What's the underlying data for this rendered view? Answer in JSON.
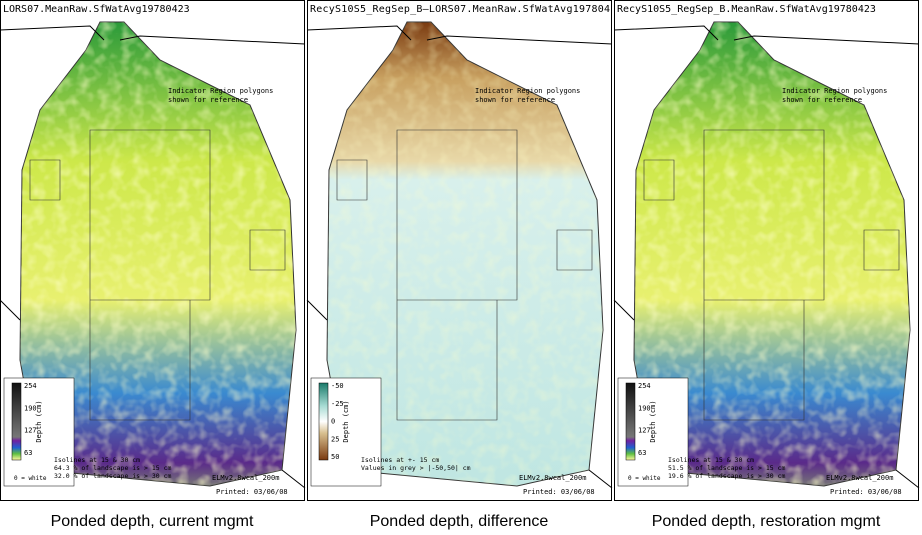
{
  "panels": [
    {
      "title": "LORS07.MeanRaw.SfWatAvg19780423",
      "note": [
        "Indicator Region polygons",
        "shown for reference"
      ],
      "legend": {
        "label": "Depth (cm)",
        "ticks": [
          "254",
          "190",
          "127",
          "63"
        ],
        "zero_note": "0 = white"
      },
      "stats": [
        "Isolines at 15 & 30 cm",
        "64.3 % of landscape is > 15 cm",
        "32.0 % of landscape is > 30 cm"
      ],
      "model": "ELMv2.8wcal_200m",
      "printed": "Printed: 03/06/08",
      "caption": "Ponded depth, current mgmt"
    },
    {
      "title": "RecyS10S5_RegSep_B—LORS07.MeanRaw.SfWatAvg197804",
      "note": [
        "Indicator Region polygons",
        "shown for reference"
      ],
      "legend": {
        "label": "Depth (cm)",
        "ticks": [
          "-50",
          "-25",
          "0",
          "25",
          "50"
        ]
      },
      "stats": [
        "Isolines at +- 15 cm",
        "Values in grey > |-50,50| cm"
      ],
      "model": "ELMv2.8wcal_200m",
      "printed": "Printed: 03/06/08",
      "caption": "Ponded depth, difference"
    },
    {
      "title": "RecyS10S5_RegSep_B.MeanRaw.SfWatAvg19780423",
      "note": [
        "Indicator Region polygons",
        "shown for reference"
      ],
      "legend": {
        "label": "Depth (cm)",
        "ticks": [
          "254",
          "190",
          "127",
          "63"
        ],
        "zero_note": "0 = white"
      },
      "stats": [
        "Isolines at 15 & 30 cm",
        "51.5 % of landscape is > 15 cm",
        "19.6 % of landscape is > 30 cm"
      ],
      "model": "ELMv2.8wcal_200m",
      "printed": "Printed: 03/06/08",
      "caption": "Ponded depth, restoration mgmt"
    }
  ]
}
